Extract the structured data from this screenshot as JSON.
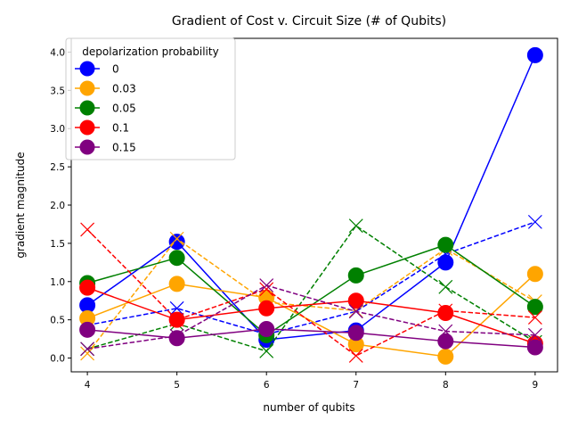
{
  "chart_data": {
    "type": "line",
    "title": "Gradient of Cost v. Circuit Size (# of Qubits)",
    "xlabel": "number of qubits",
    "ylabel": "gradient magnitude",
    "x": [
      4,
      5,
      6,
      7,
      8,
      9
    ],
    "xlim": [
      3.82,
      9.25
    ],
    "ylim": [
      -0.18,
      4.18
    ],
    "yticks": [
      "0.0",
      "0.5",
      "1.0",
      "1.5",
      "2.0",
      "2.5",
      "3.0",
      "3.5",
      "4.0"
    ],
    "xticks": [
      "4",
      "5",
      "6",
      "7",
      "8",
      "9"
    ],
    "grid": false,
    "legend_placement": "top-left",
    "legend_title": "depolarization probability",
    "series": [
      {
        "name": "0",
        "color": "#0000ff",
        "solid_circle": [
          0.69,
          1.52,
          0.24,
          0.36,
          1.25,
          3.96
        ],
        "dashed_x": [
          0.43,
          0.65,
          0.31,
          0.61,
          1.36,
          1.78
        ]
      },
      {
        "name": "0.03",
        "color": "#ffa500",
        "solid_circle": [
          0.52,
          0.97,
          0.79,
          0.18,
          0.02,
          1.1
        ],
        "dashed_x": [
          0.06,
          1.56,
          0.73,
          0.62,
          1.43,
          0.74
        ]
      },
      {
        "name": "0.05",
        "color": "#008000",
        "solid_circle": [
          0.98,
          1.31,
          0.3,
          1.08,
          1.48,
          0.67
        ],
        "dashed_x": [
          0.12,
          0.45,
          0.09,
          1.73,
          0.93,
          0.21
        ]
      },
      {
        "name": "0.1",
        "color": "#ff0000",
        "solid_circle": [
          0.92,
          0.5,
          0.65,
          0.75,
          0.59,
          0.19
        ],
        "dashed_x": [
          1.68,
          0.5,
          0.9,
          0.03,
          0.62,
          0.53
        ]
      },
      {
        "name": "0.15",
        "color": "#800080",
        "solid_circle": [
          0.37,
          0.26,
          0.38,
          0.33,
          0.22,
          0.14
        ],
        "dashed_x": [
          0.12,
          0.29,
          0.95,
          0.61,
          0.35,
          0.3
        ]
      }
    ]
  }
}
